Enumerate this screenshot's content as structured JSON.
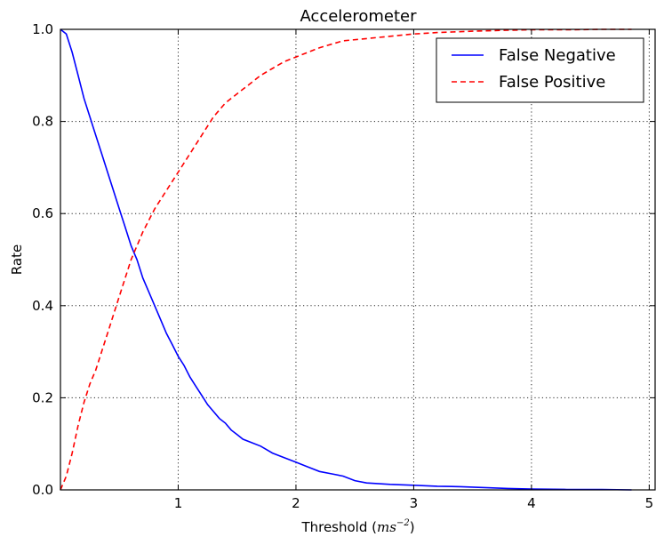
{
  "chart_data": {
    "type": "line",
    "title": "Accelerometer",
    "xlabel": "Threshold",
    "xlabel_unit": "ms",
    "xlabel_unit_exp": "−2",
    "ylabel": "Rate",
    "xlim": [
      0,
      5.05
    ],
    "ylim": [
      0,
      1.0
    ],
    "x_ticks": [
      1,
      2,
      3,
      4,
      5
    ],
    "x_tick_labels": [
      "1",
      "2",
      "3",
      "4",
      "5"
    ],
    "y_ticks": [
      0.0,
      0.2,
      0.4,
      0.6,
      0.8,
      1.0
    ],
    "y_tick_labels": [
      "0.0",
      "0.2",
      "0.4",
      "0.6",
      "0.8",
      "1.0"
    ],
    "grid": true,
    "legend_position": "top-right",
    "series": [
      {
        "name": "False Negative",
        "color": "#0000ff",
        "style": "solid",
        "x": [
          0,
          0.05,
          0.1,
          0.15,
          0.2,
          0.25,
          0.3,
          0.35,
          0.4,
          0.45,
          0.5,
          0.55,
          0.6,
          0.65,
          0.7,
          0.75,
          0.8,
          0.85,
          0.9,
          0.95,
          1.0,
          1.05,
          1.1,
          1.15,
          1.2,
          1.25,
          1.3,
          1.35,
          1.4,
          1.45,
          1.5,
          1.55,
          1.6,
          1.7,
          1.8,
          1.9,
          2.0,
          2.1,
          2.2,
          2.3,
          2.4,
          2.5,
          2.6,
          2.8,
          3.0,
          3.2,
          3.4,
          3.6,
          3.8,
          4.0,
          4.3,
          4.6,
          4.85
        ],
        "y": [
          1.0,
          0.99,
          0.95,
          0.9,
          0.85,
          0.81,
          0.77,
          0.73,
          0.69,
          0.65,
          0.61,
          0.57,
          0.53,
          0.5,
          0.46,
          0.43,
          0.4,
          0.37,
          0.34,
          0.315,
          0.29,
          0.27,
          0.245,
          0.225,
          0.205,
          0.185,
          0.17,
          0.155,
          0.145,
          0.13,
          0.12,
          0.11,
          0.105,
          0.095,
          0.08,
          0.07,
          0.06,
          0.05,
          0.04,
          0.035,
          0.03,
          0.02,
          0.015,
          0.012,
          0.01,
          0.008,
          0.007,
          0.005,
          0.003,
          0.002,
          0.001,
          0.001,
          0.0
        ]
      },
      {
        "name": "False Positive",
        "color": "#ff0000",
        "style": "dashed",
        "x": [
          0,
          0.05,
          0.1,
          0.15,
          0.2,
          0.25,
          0.3,
          0.4,
          0.5,
          0.6,
          0.7,
          0.8,
          0.9,
          1.0,
          1.1,
          1.2,
          1.3,
          1.4,
          1.5,
          1.6,
          1.7,
          1.8,
          1.9,
          2.0,
          2.2,
          2.4,
          2.6,
          2.8,
          3.0,
          3.2,
          3.5,
          3.8,
          4.0,
          4.3,
          4.6,
          4.85
        ],
        "y": [
          0.0,
          0.03,
          0.08,
          0.14,
          0.19,
          0.23,
          0.26,
          0.34,
          0.42,
          0.5,
          0.56,
          0.61,
          0.65,
          0.69,
          0.73,
          0.77,
          0.81,
          0.84,
          0.86,
          0.88,
          0.9,
          0.915,
          0.93,
          0.94,
          0.96,
          0.975,
          0.98,
          0.985,
          0.99,
          0.993,
          0.996,
          0.998,
          0.999,
          0.999,
          1.0,
          1.0
        ]
      }
    ]
  }
}
